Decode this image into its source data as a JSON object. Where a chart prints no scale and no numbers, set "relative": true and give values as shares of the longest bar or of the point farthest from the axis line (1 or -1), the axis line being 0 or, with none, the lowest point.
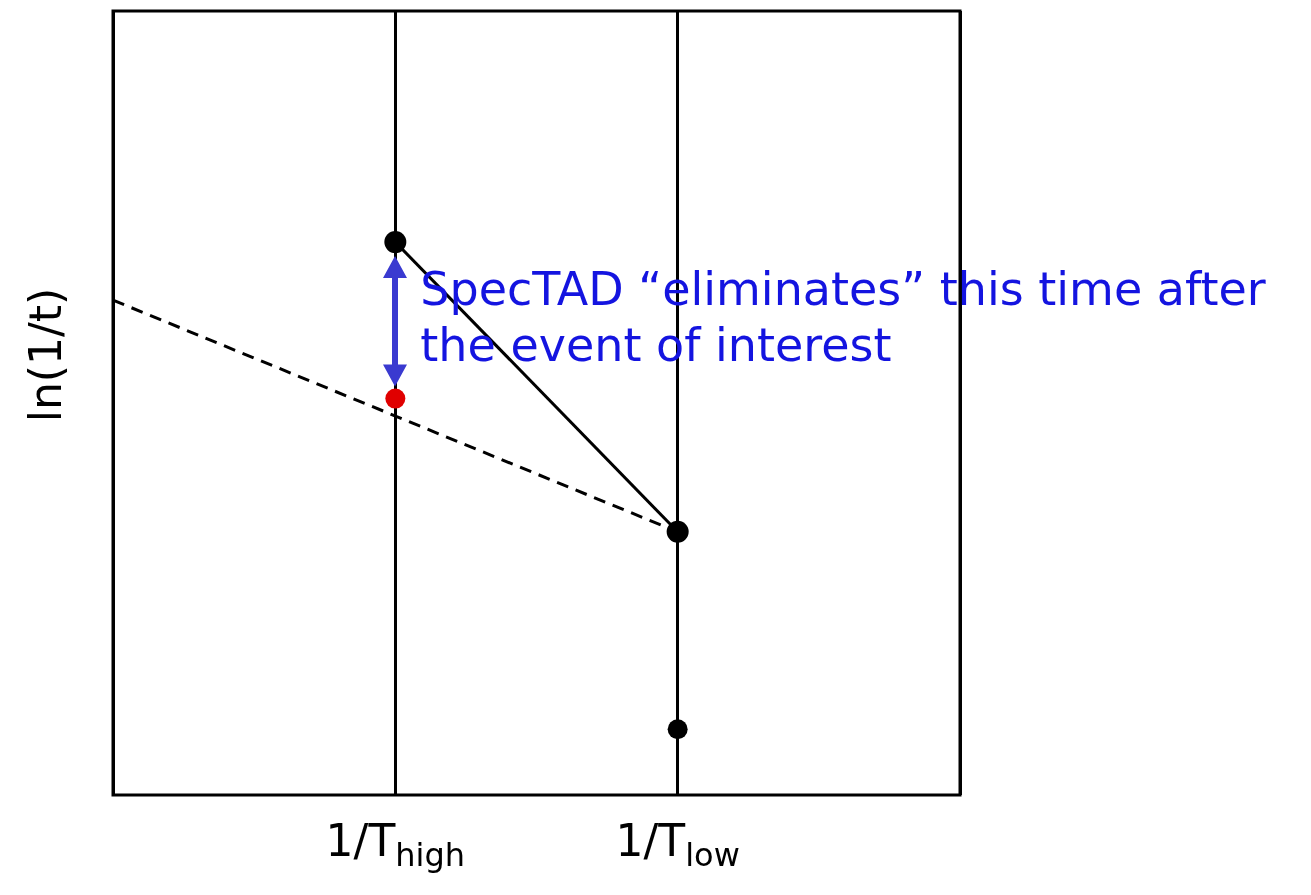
{
  "chart_data": {
    "type": "line",
    "relative": true,
    "ylabel": "ln(1/t)",
    "categories": [
      null,
      "1/T$_{high}$",
      "1/T$_{low}$",
      null
    ],
    "tick_labels": "x",
    "grid": "x",
    "legend": false,
    "marker": "circle",
    "series": [
      {
        "color": "#000000",
        "values": [
          null,
          1,
          0.476,
          null
        ],
        "line_style": "solid"
      },
      {
        "color": "#000000",
        "values": [
          0.895,
          null,
          0.476,
          null
        ],
        "line_style": "dashed",
        "marker": "none"
      },
      {
        "type": "scatter",
        "color": "#000000",
        "values": [
          null,
          null,
          0.119,
          null
        ]
      },
      {
        "type": "scatter",
        "color": "#e00000",
        "values": [
          null,
          0.717,
          null,
          null
        ]
      }
    ],
    "annotations": [
      "SpecTAD “eliminates” this time after the event of interest"
    ]
  }
}
